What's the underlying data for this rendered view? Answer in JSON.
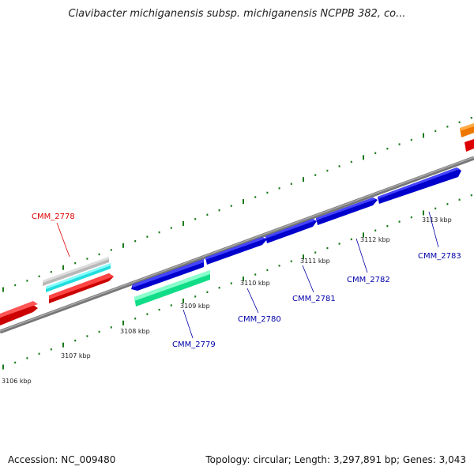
{
  "title": "Clavibacter michiganensis subsp. michiganensis NCPPB 382, co...",
  "footer": {
    "accession": "Accession: NC_009480",
    "summary": "Topology: circular; Length: 3,297,891 bp; Genes: 3,043"
  },
  "ticks": [
    "3106 kbp",
    "3107 kbp",
    "3108 kbp",
    "3109 kbp",
    "3110 kbp",
    "3111 kbp",
    "3112 kbp",
    "3113 kbp"
  ],
  "genes": [
    {
      "label": "CMM_2778",
      "color": "#dd0000"
    },
    {
      "label": "CMM_2779",
      "color": "#0000aa"
    },
    {
      "label": "CMM_2780",
      "color": "#0000aa"
    },
    {
      "label": "CMM_2781",
      "color": "#0000aa"
    },
    {
      "label": "CMM_2782",
      "color": "#0000aa"
    },
    {
      "label": "CMM_2783",
      "color": "#0000aa"
    }
  ],
  "colors": {
    "backbone": "#777777",
    "tick": "#1a7a1a",
    "cds_blue": "#1010dd",
    "cds_red": "#ee1111",
    "cds_cyan": "#22eeee",
    "cds_gray": "#bbbbbb",
    "cds_green": "#22ee99",
    "cds_orange": "#ff8800"
  }
}
